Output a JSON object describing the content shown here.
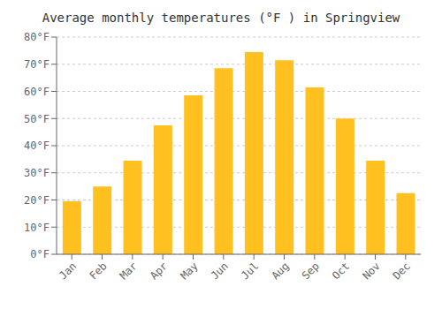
{
  "chart_data": {
    "type": "bar",
    "title": "Average monthly temperatures (°F ) in Springview",
    "categories": [
      "Jan",
      "Feb",
      "Mar",
      "Apr",
      "May",
      "Jun",
      "Jul",
      "Aug",
      "Sep",
      "Oct",
      "Nov",
      "Dec"
    ],
    "values": [
      19.5,
      25.0,
      34.5,
      47.5,
      58.5,
      68.5,
      74.5,
      71.5,
      61.5,
      50.0,
      34.5,
      22.5
    ],
    "color": "#FFC020",
    "ylim": [
      0,
      80
    ],
    "yticks": [
      {
        "value": 0,
        "label": "0°F"
      },
      {
        "value": 10,
        "label": "10°F"
      },
      {
        "value": 20,
        "label": "20°F"
      },
      {
        "value": 30,
        "label": "30°F"
      },
      {
        "value": 40,
        "label": "40°F"
      },
      {
        "value": 50,
        "label": "50°F"
      },
      {
        "value": 60,
        "label": "60°F"
      },
      {
        "value": 70,
        "label": "70°F"
      },
      {
        "value": 80,
        "label": "80°F"
      }
    ],
    "grid": true
  }
}
